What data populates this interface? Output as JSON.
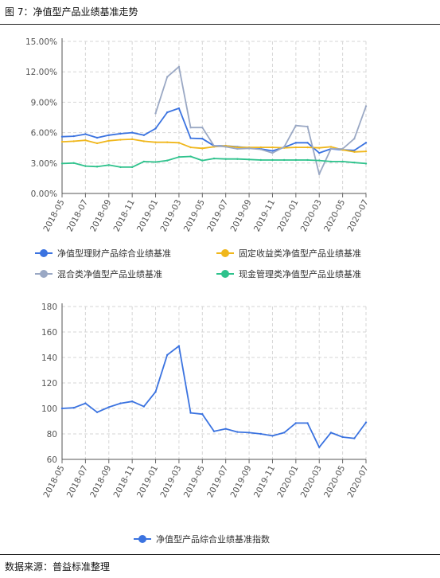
{
  "figure": {
    "title": "图 7：净值型产品业绩基准走势",
    "source": "数据来源：普益标准整理"
  },
  "x_labels": [
    "2018-05",
    "2018-07",
    "2018-09",
    "2018-11",
    "2019-01",
    "2019-03",
    "2019-05",
    "2019-07",
    "2019-09",
    "2019-11",
    "2020-01",
    "2020-03",
    "2020-05",
    "2020-07"
  ],
  "chart_data": [
    {
      "type": "line",
      "title": "",
      "xlabel": "",
      "ylabel": "",
      "x": [
        "2018-05",
        "2018-06",
        "2018-07",
        "2018-08",
        "2018-09",
        "2018-10",
        "2018-11",
        "2018-12",
        "2019-01",
        "2019-02",
        "2019-03",
        "2019-04",
        "2019-05",
        "2019-06",
        "2019-07",
        "2019-08",
        "2019-09",
        "2019-10",
        "2019-11",
        "2019-12",
        "2020-01",
        "2020-02",
        "2020-03",
        "2020-04",
        "2020-05",
        "2020-06",
        "2020-07"
      ],
      "ylim": [
        0,
        15
      ],
      "yticks": [
        "0.00%",
        "3.00%",
        "6.00%",
        "9.00%",
        "12.00%",
        "15.00%"
      ],
      "grid": true,
      "legend_position": "bottom",
      "series": [
        {
          "name": "净值型理财产品综合业绩基准",
          "color": "#3b73e0",
          "values": [
            5.6,
            5.65,
            5.85,
            5.5,
            5.75,
            5.9,
            6.0,
            5.75,
            6.4,
            8.0,
            8.4,
            5.45,
            5.4,
            4.7,
            4.7,
            4.6,
            4.5,
            4.4,
            4.2,
            4.55,
            5.0,
            5.0,
            4.0,
            4.4,
            4.3,
            4.25,
            5.0
          ]
        },
        {
          "name": "固定收益类净值型产品业绩基准",
          "color": "#f0b71c",
          "values": [
            5.1,
            5.15,
            5.25,
            4.95,
            5.2,
            5.3,
            5.35,
            5.15,
            5.05,
            5.05,
            5.0,
            4.55,
            4.45,
            4.6,
            4.7,
            4.55,
            4.55,
            4.55,
            4.55,
            4.5,
            4.55,
            4.55,
            4.5,
            4.6,
            4.3,
            4.1,
            4.15
          ]
        },
        {
          "name": "混合类净值型产品业绩基准",
          "color": "#9aa8c4",
          "values": [
            null,
            null,
            null,
            null,
            null,
            null,
            null,
            null,
            7.9,
            11.5,
            12.5,
            6.5,
            6.5,
            4.7,
            4.6,
            4.4,
            4.45,
            4.35,
            4.0,
            4.6,
            6.7,
            6.6,
            1.9,
            4.4,
            4.4,
            5.4,
            8.6
          ]
        },
        {
          "name": "现金管理类净值型产品业绩基准",
          "color": "#2ec28c",
          "values": [
            2.95,
            3.0,
            2.7,
            2.65,
            2.8,
            2.6,
            2.6,
            3.15,
            3.1,
            3.25,
            3.6,
            3.65,
            3.25,
            3.45,
            3.4,
            3.4,
            3.35,
            3.3,
            3.3,
            3.3,
            3.3,
            3.3,
            3.25,
            3.15,
            3.15,
            3.05,
            2.95
          ]
        }
      ]
    },
    {
      "type": "line",
      "title": "",
      "xlabel": "",
      "ylabel": "",
      "x": [
        "2018-05",
        "2018-06",
        "2018-07",
        "2018-08",
        "2018-09",
        "2018-10",
        "2018-11",
        "2018-12",
        "2019-01",
        "2019-02",
        "2019-03",
        "2019-04",
        "2019-05",
        "2019-06",
        "2019-07",
        "2019-08",
        "2019-09",
        "2019-10",
        "2019-11",
        "2019-12",
        "2020-01",
        "2020-02",
        "2020-03",
        "2020-04",
        "2020-05",
        "2020-06",
        "2020-07"
      ],
      "ylim": [
        60,
        180
      ],
      "yticks": [
        "60",
        "80",
        "100",
        "120",
        "140",
        "160",
        "180"
      ],
      "grid": true,
      "legend_position": "bottom",
      "series": [
        {
          "name": "净值型产品综合业绩基准指数",
          "color": "#3b73e0",
          "values": [
            100,
            100.5,
            104,
            97,
            101,
            104,
            105.5,
            101.5,
            113,
            142,
            149,
            96.5,
            95.5,
            82,
            84,
            81.5,
            81,
            80,
            78.5,
            81,
            88.5,
            88.5,
            69.5,
            81,
            77.5,
            76.5,
            89
          ]
        }
      ]
    }
  ]
}
